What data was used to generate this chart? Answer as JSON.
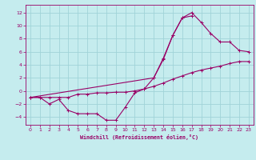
{
  "xlabel": "Windchill (Refroidissement éolien,°C)",
  "bg_color": "#c5ecee",
  "grid_color": "#a0d4d8",
  "line_color": "#990066",
  "xlim": [
    -0.5,
    23.5
  ],
  "ylim": [
    -5.2,
    13.2
  ],
  "xticks": [
    0,
    1,
    2,
    3,
    4,
    5,
    6,
    7,
    8,
    9,
    10,
    11,
    12,
    13,
    14,
    15,
    16,
    17,
    18,
    19,
    20,
    21,
    22,
    23
  ],
  "yticks": [
    -4,
    -2,
    0,
    2,
    4,
    6,
    8,
    10,
    12
  ],
  "curve1_x": [
    0,
    1,
    2,
    3,
    4,
    5,
    6,
    7,
    8,
    9,
    10,
    11,
    12,
    13,
    14,
    15,
    16,
    17
  ],
  "curve1_y": [
    -1.0,
    -1.0,
    -2.0,
    -1.3,
    -3.0,
    -3.5,
    -3.5,
    -3.5,
    -4.5,
    -4.5,
    -2.5,
    -0.3,
    0.3,
    2.0,
    5.0,
    8.5,
    11.2,
    11.5
  ],
  "curve2_x": [
    0,
    1,
    2,
    3,
    4,
    5,
    6,
    7,
    8,
    9,
    10,
    11,
    12,
    13,
    14,
    15,
    16,
    17,
    18,
    19,
    20,
    21,
    22,
    23
  ],
  "curve2_y": [
    -1.0,
    -1.0,
    -1.0,
    -1.0,
    -1.0,
    -0.5,
    -0.5,
    -0.3,
    -0.3,
    -0.2,
    -0.2,
    0.0,
    0.3,
    0.7,
    1.2,
    1.8,
    2.3,
    2.8,
    3.2,
    3.5,
    3.8,
    4.2,
    4.5,
    4.5
  ],
  "curve3_x": [
    0,
    13,
    14,
    15,
    16,
    17,
    18,
    19,
    20,
    21,
    22,
    23
  ],
  "curve3_y": [
    -1.0,
    2.0,
    4.8,
    8.5,
    11.2,
    12.0,
    10.5,
    8.8,
    7.5,
    7.5,
    6.2,
    6.0
  ],
  "curve4_x": [
    0,
    13,
    14,
    15,
    16,
    17,
    18,
    19,
    20,
    21,
    22,
    23
  ],
  "curve4_y": [
    -1.0,
    2.0,
    4.8,
    8.5,
    11.2,
    12.0,
    10.5,
    8.8,
    7.5,
    7.5,
    6.2,
    6.0
  ]
}
